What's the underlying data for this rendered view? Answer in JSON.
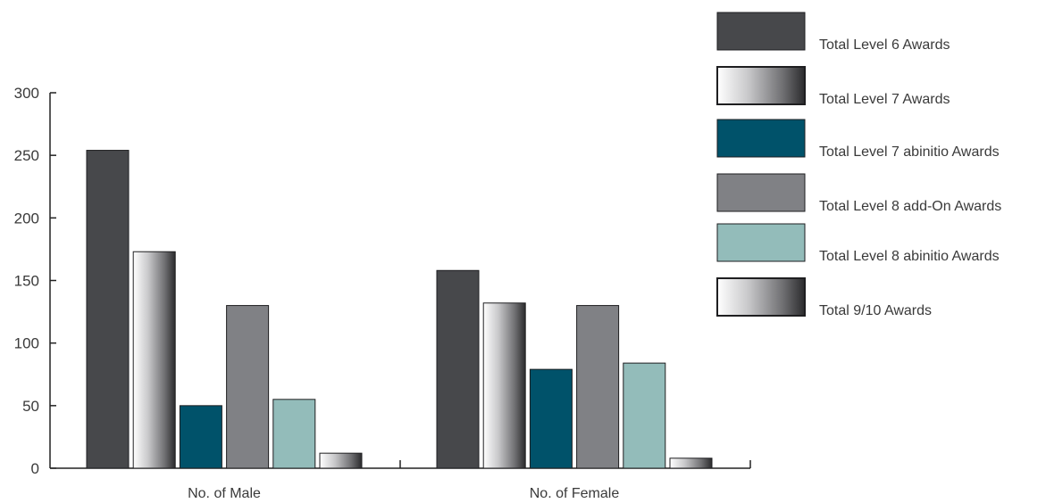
{
  "chart_data": {
    "type": "bar",
    "title": "",
    "xlabel": "",
    "ylabel": "",
    "ylim": [
      0,
      300
    ],
    "yticks": [
      0,
      50,
      100,
      150,
      200,
      250,
      300
    ],
    "grid": false,
    "legend_position": "top-right",
    "categories": [
      "No. of Male",
      "No. of Female"
    ],
    "series": [
      {
        "name": "Total Level 6 Awards",
        "values": [
          254,
          158
        ],
        "style": "solid",
        "color": "#47484b"
      },
      {
        "name": "Total Level 7 Awards",
        "values": [
          173,
          132
        ],
        "style": "gradient",
        "color": "#2b2b2d"
      },
      {
        "name": "Total Level 7 abinitio Awards",
        "values": [
          50,
          79
        ],
        "style": "solid",
        "color": "#00526a"
      },
      {
        "name": "Total Level 8 add-On Awards",
        "values": [
          130,
          130
        ],
        "style": "solid",
        "color": "#808185"
      },
      {
        "name": "Total Level 8 abinitio Awards",
        "values": [
          55,
          84
        ],
        "style": "solid",
        "color": "#93bcba"
      },
      {
        "name": "Total 9/10 Awards",
        "values": [
          12,
          8
        ],
        "style": "gradient",
        "color": "#2b2b2d"
      }
    ]
  }
}
